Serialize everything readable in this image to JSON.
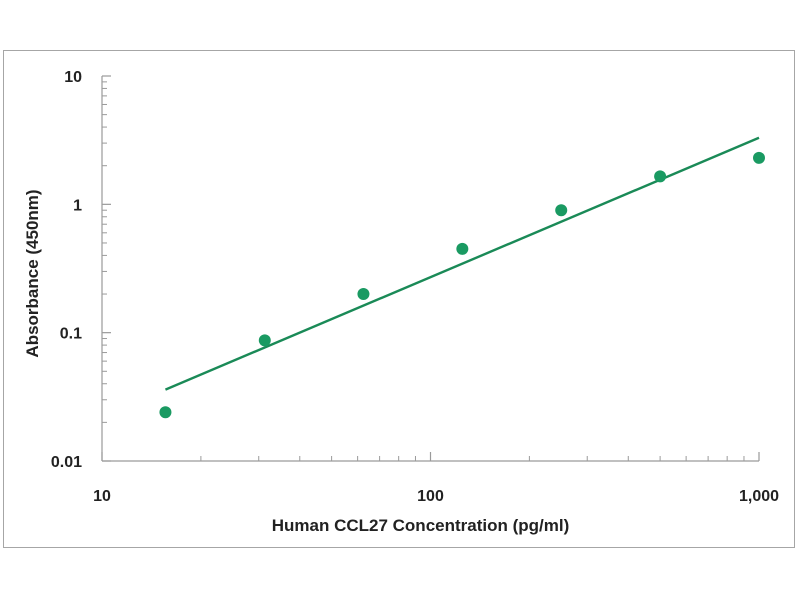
{
  "chart_data": {
    "type": "scatter",
    "title": "",
    "xlabel": "Human CCL27 Concentration (pg/ml)",
    "ylabel": "Absorbance (450nm)",
    "x_scale": "log",
    "y_scale": "log",
    "xlim": [
      10,
      1000
    ],
    "ylim": [
      0.01,
      10
    ],
    "x_ticks": [
      10,
      100,
      1000
    ],
    "x_tick_labels": [
      "10",
      "100",
      "1,000"
    ],
    "y_ticks": [
      0.01,
      0.1,
      1,
      10
    ],
    "y_tick_labels": [
      "0.01",
      "0.1",
      "1",
      "10"
    ],
    "grid": false,
    "legend": "none",
    "series": [
      {
        "x": [
          15.6,
          31.3,
          62.5,
          125,
          250,
          500,
          1000
        ],
        "y": [
          0.024,
          0.087,
          0.2,
          0.45,
          0.9,
          1.65,
          2.3
        ]
      }
    ],
    "fit_line": {
      "x": [
        15.6,
        1000
      ],
      "y": [
        0.036,
        3.3
      ]
    },
    "colors": {
      "points": "#1a9a62",
      "line": "#1a8a57",
      "axis": "#9a9a9a",
      "text": "#222222"
    }
  }
}
